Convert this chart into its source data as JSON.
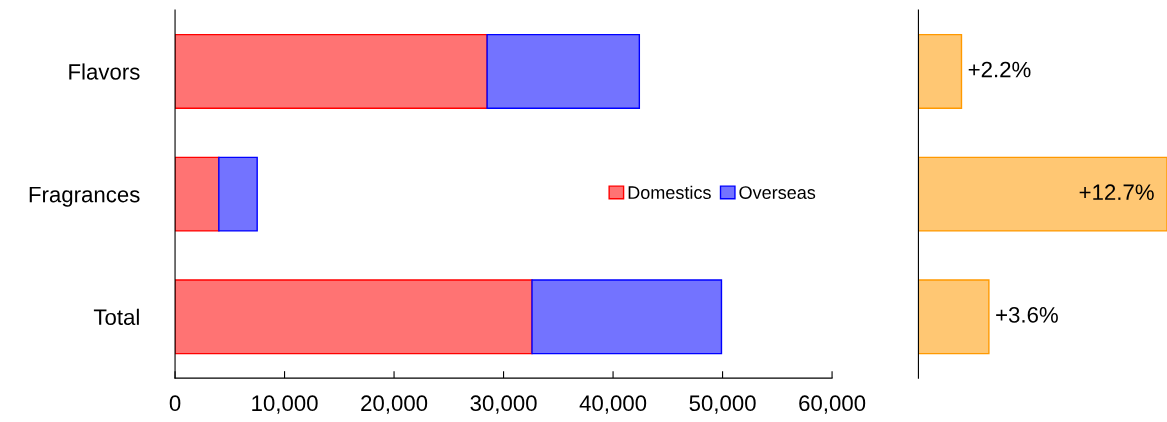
{
  "chart_data": [
    {
      "type": "bar",
      "orientation": "horizontal",
      "stacked": true,
      "categories": [
        "Flavors",
        "Fragrances",
        "Total"
      ],
      "series": [
        {
          "name": "Domestics",
          "color": "#ff0000",
          "values": [
            28500,
            4000,
            32600
          ]
        },
        {
          "name": "Overseas",
          "color": "#0000ff",
          "values": [
            13900,
            3500,
            17300
          ]
        }
      ],
      "xlim": [
        0,
        60000
      ],
      "xticks": [
        {
          "value": 0,
          "label": "0"
        },
        {
          "value": 10000,
          "label": "10,000"
        },
        {
          "value": 20000,
          "label": "20,000"
        },
        {
          "value": 30000,
          "label": "30,000"
        },
        {
          "value": 40000,
          "label": "40,000"
        },
        {
          "value": 50000,
          "label": "50,000"
        },
        {
          "value": 60000,
          "label": "60,000"
        }
      ],
      "grid": false,
      "legend": "right"
    },
    {
      "type": "bar",
      "orientation": "horizontal",
      "categories": [
        null,
        null,
        null
      ],
      "series": [
        {
          "color": "#ff9900",
          "values": [
            2.2,
            12.7,
            3.6
          ],
          "value_labels": [
            "+2.2%",
            "+12.7%",
            "+3.6%"
          ]
        }
      ],
      "grid": false,
      "legend": false
    }
  ]
}
